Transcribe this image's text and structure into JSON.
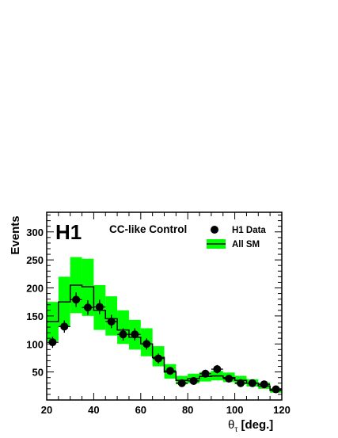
{
  "chart_data": {
    "type": "bar",
    "experiment_label": "H1",
    "title": "CC-like Control",
    "xlabel": "θ",
    "xlabel_sub": "τ",
    "xlabel_unit": "[deg.]",
    "ylabel": "Events",
    "xlim": [
      20,
      120
    ],
    "ylim": [
      0,
      335
    ],
    "xticks": [
      20,
      40,
      60,
      80,
      100,
      120
    ],
    "yticks": [
      50,
      100,
      150,
      200,
      250,
      300
    ],
    "bin_edges": [
      20,
      25,
      30,
      35,
      40,
      45,
      50,
      55,
      60,
      65,
      70,
      75,
      80,
      85,
      90,
      95,
      100,
      105,
      110,
      115,
      120
    ],
    "legend": {
      "position": "top-right",
      "data_label": "H1 Data",
      "sm_label": "All SM"
    },
    "series": [
      {
        "name": "H1 Data",
        "style": "points",
        "values": [
          103,
          131,
          179,
          165,
          166,
          140,
          117,
          117,
          100,
          74,
          52,
          30,
          34,
          47,
          55,
          38,
          30,
          30,
          28,
          19
        ],
        "errors": [
          10,
          11,
          13,
          13,
          13,
          12,
          11,
          11,
          10,
          9,
          7,
          5.5,
          6,
          7,
          7.5,
          6,
          5.5,
          5.5,
          5,
          4.5
        ]
      },
      {
        "name": "All SM",
        "style": "step-band",
        "values": [
          140,
          175,
          205,
          202,
          160,
          145,
          125,
          112,
          100,
          76,
          50,
          35,
          38,
          42,
          43,
          40,
          35,
          30,
          25,
          17
        ],
        "band_low": [
          105,
          130,
          155,
          150,
          125,
          115,
          100,
          90,
          78,
          60,
          38,
          28,
          30,
          33,
          35,
          32,
          28,
          24,
          20,
          13
        ],
        "band_high": [
          175,
          220,
          255,
          252,
          205,
          185,
          160,
          143,
          128,
          96,
          64,
          43,
          47,
          50,
          52,
          49,
          43,
          37,
          31,
          21
        ]
      }
    ],
    "colors": {
      "band": "#00ff00",
      "line": "#000000",
      "points": "#000000"
    }
  }
}
